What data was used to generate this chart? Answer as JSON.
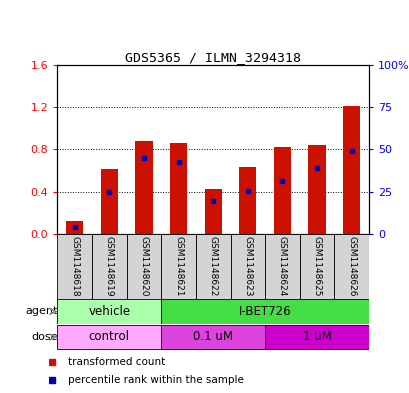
{
  "title": "GDS5365 / ILMN_3294318",
  "samples": [
    "GSM1148618",
    "GSM1148619",
    "GSM1148620",
    "GSM1148621",
    "GSM1148622",
    "GSM1148623",
    "GSM1148624",
    "GSM1148625",
    "GSM1148626"
  ],
  "transformed_count": [
    0.12,
    0.61,
    0.88,
    0.86,
    0.42,
    0.63,
    0.82,
    0.84,
    1.21
  ],
  "percentile_rank": [
    0.06,
    0.4,
    0.72,
    0.68,
    0.31,
    0.41,
    0.5,
    0.62,
    0.78
  ],
  "left_ylim": [
    0,
    1.6
  ],
  "right_ylim": [
    0,
    100
  ],
  "left_yticks": [
    0.0,
    0.4,
    0.8,
    1.2,
    1.6
  ],
  "right_yticks": [
    0,
    25,
    50,
    75,
    100
  ],
  "right_yticklabels": [
    "0",
    "25",
    "50",
    "75",
    "100%"
  ],
  "bar_color": "#cc1100",
  "dot_color": "#0000bb",
  "agent_color_light": "#aaffaa",
  "agent_color_bright": "#44dd44",
  "dose_color_light": "#ffaaff",
  "dose_color_bright": "#dd44dd",
  "dose_color_darkpink": "#cc00cc",
  "bg_color": "#ffffff",
  "label_bg_color": "#d4d4d4"
}
